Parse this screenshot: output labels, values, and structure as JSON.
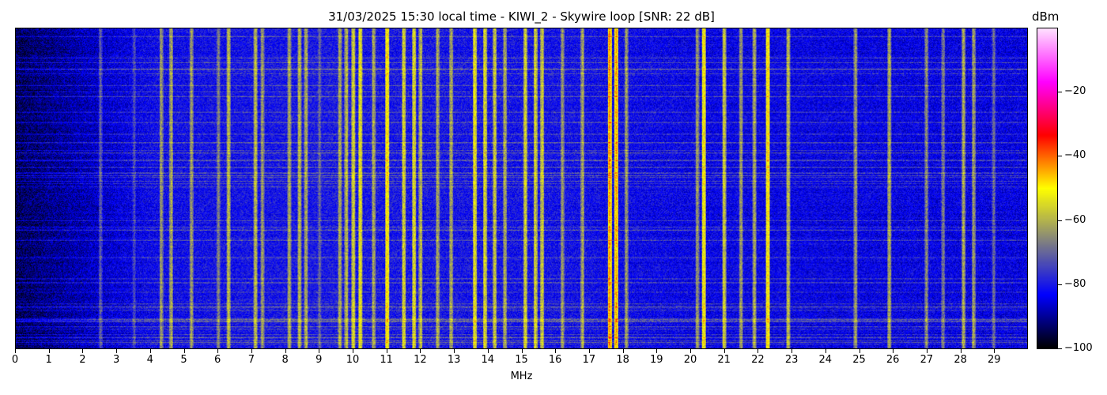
{
  "chart_data": {
    "type": "heatmap",
    "title": "31/03/2025 15:30 local time - KIWI_2 - Skywire loop [SNR: 22 dB]",
    "xlabel": "MHz",
    "ylabel": "",
    "xlim": [
      0,
      30
    ],
    "x_ticks": [
      "0",
      "1",
      "2",
      "3",
      "4",
      "5",
      "6",
      "7",
      "8",
      "9",
      "10",
      "11",
      "12",
      "13",
      "14",
      "15",
      "16",
      "17",
      "18",
      "19",
      "20",
      "21",
      "22",
      "23",
      "24",
      "25",
      "26",
      "27",
      "28",
      "29"
    ],
    "colorbar": {
      "label": "dBm",
      "range": [
        -100,
        0
      ],
      "ticks": [
        "−20",
        "−40",
        "−60",
        "−80",
        "−100"
      ],
      "tick_values": [
        -20,
        -40,
        -60,
        -80,
        -100
      ],
      "colormap": [
        "#000000",
        "#0000ff",
        "#808080",
        "#ffff00",
        "#ff0000",
        "#ff00ff",
        "#ffe0ff"
      ]
    },
    "signals": [
      {
        "mhz": 2.5,
        "dbm": -70
      },
      {
        "mhz": 3.5,
        "dbm": -72
      },
      {
        "mhz": 4.3,
        "dbm": -62
      },
      {
        "mhz": 4.6,
        "dbm": -60
      },
      {
        "mhz": 5.2,
        "dbm": -62
      },
      {
        "mhz": 6.0,
        "dbm": -65
      },
      {
        "mhz": 6.3,
        "dbm": -58
      },
      {
        "mhz": 7.1,
        "dbm": -58
      },
      {
        "mhz": 7.3,
        "dbm": -62
      },
      {
        "mhz": 8.1,
        "dbm": -60
      },
      {
        "mhz": 8.4,
        "dbm": -58
      },
      {
        "mhz": 8.6,
        "dbm": -60
      },
      {
        "mhz": 9.0,
        "dbm": -68
      },
      {
        "mhz": 9.6,
        "dbm": -60
      },
      {
        "mhz": 9.8,
        "dbm": -58
      },
      {
        "mhz": 10.0,
        "dbm": -55
      },
      {
        "mhz": 10.2,
        "dbm": -52
      },
      {
        "mhz": 10.6,
        "dbm": -60
      },
      {
        "mhz": 11.0,
        "dbm": -48
      },
      {
        "mhz": 11.5,
        "dbm": -55
      },
      {
        "mhz": 11.8,
        "dbm": -54
      },
      {
        "mhz": 12.0,
        "dbm": -58
      },
      {
        "mhz": 12.5,
        "dbm": -60
      },
      {
        "mhz": 12.9,
        "dbm": -60
      },
      {
        "mhz": 13.6,
        "dbm": -52
      },
      {
        "mhz": 13.9,
        "dbm": -54
      },
      {
        "mhz": 14.2,
        "dbm": -56
      },
      {
        "mhz": 14.5,
        "dbm": -60
      },
      {
        "mhz": 15.1,
        "dbm": -55
      },
      {
        "mhz": 15.4,
        "dbm": -55
      },
      {
        "mhz": 15.6,
        "dbm": -56
      },
      {
        "mhz": 16.2,
        "dbm": -62
      },
      {
        "mhz": 16.8,
        "dbm": -60
      },
      {
        "mhz": 17.6,
        "dbm": -42
      },
      {
        "mhz": 17.8,
        "dbm": -44
      },
      {
        "mhz": 18.1,
        "dbm": -62
      },
      {
        "mhz": 20.2,
        "dbm": -62
      },
      {
        "mhz": 20.4,
        "dbm": -50
      },
      {
        "mhz": 21.0,
        "dbm": -56
      },
      {
        "mhz": 21.5,
        "dbm": -62
      },
      {
        "mhz": 21.9,
        "dbm": -60
      },
      {
        "mhz": 22.3,
        "dbm": -48
      },
      {
        "mhz": 22.9,
        "dbm": -58
      },
      {
        "mhz": 24.9,
        "dbm": -62
      },
      {
        "mhz": 25.9,
        "dbm": -60
      },
      {
        "mhz": 27.0,
        "dbm": -64
      },
      {
        "mhz": 27.5,
        "dbm": -66
      },
      {
        "mhz": 28.1,
        "dbm": -60
      },
      {
        "mhz": 28.4,
        "dbm": -62
      },
      {
        "mhz": 29.0,
        "dbm": -68
      }
    ],
    "noise_floor": [
      {
        "mhz": 0,
        "dbm": -94
      },
      {
        "mhz": 2,
        "dbm": -88
      },
      {
        "mhz": 4,
        "dbm": -82
      },
      {
        "mhz": 9,
        "dbm": -80
      },
      {
        "mhz": 16,
        "dbm": -81
      },
      {
        "mhz": 20,
        "dbm": -83
      },
      {
        "mhz": 30,
        "dbm": -84
      }
    ]
  }
}
